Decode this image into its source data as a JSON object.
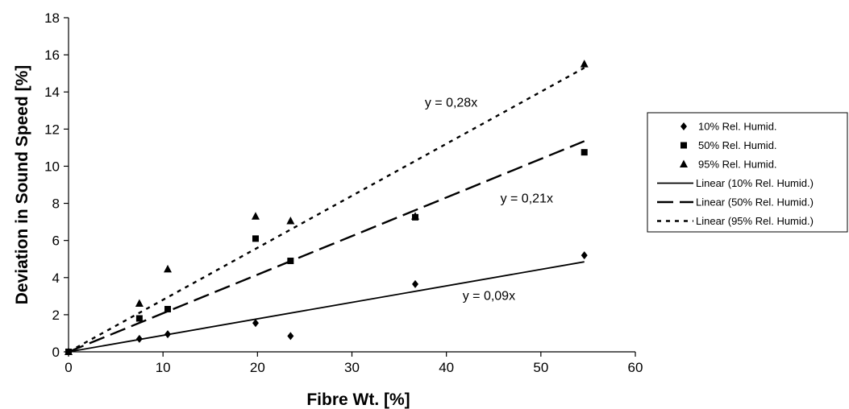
{
  "chart_data": {
    "type": "scatter",
    "title": "",
    "xlabel": "Fibre Wt. [%]",
    "ylabel": "Deviation in Sound Speed [%]",
    "xlim": [
      0,
      60
    ],
    "ylim": [
      0,
      18
    ],
    "x_ticks": [
      0,
      10,
      20,
      30,
      40,
      50,
      60
    ],
    "y_ticks": [
      0,
      2,
      4,
      6,
      8,
      10,
      12,
      14,
      16,
      18
    ],
    "grid": false,
    "legend_position": "right",
    "series": [
      {
        "name": "10% Rel. Humid.",
        "marker": "diamond",
        "points": [
          [
            0,
            0
          ],
          [
            7.5,
            0.7
          ],
          [
            10.5,
            0.95
          ],
          [
            19.8,
            1.55
          ],
          [
            23.5,
            0.85
          ],
          [
            36.7,
            3.65
          ],
          [
            54.6,
            5.2
          ]
        ]
      },
      {
        "name": "50% Rel. Humid.",
        "marker": "square",
        "points": [
          [
            0,
            0
          ],
          [
            7.5,
            1.8
          ],
          [
            10.5,
            2.3
          ],
          [
            19.8,
            6.1
          ],
          [
            23.5,
            4.9
          ],
          [
            36.7,
            7.25
          ],
          [
            54.6,
            10.75
          ]
        ]
      },
      {
        "name": "95% Rel. Humid.",
        "marker": "triangle",
        "points": [
          [
            0,
            0
          ],
          [
            7.5,
            2.6
          ],
          [
            10.5,
            4.45
          ],
          [
            19.8,
            7.3
          ],
          [
            23.5,
            7.05
          ],
          [
            36.7,
            7.3
          ],
          [
            54.6,
            15.5
          ]
        ]
      }
    ],
    "trendlines": [
      {
        "name": "Linear (10% Rel. Humid.)",
        "style": "solid",
        "from": [
          0,
          0
        ],
        "to": [
          54.6,
          4.85
        ],
        "equation": "y = 0,09x",
        "label_at": [
          44.5,
          2.8
        ]
      },
      {
        "name": "Linear (50% Rel. Humid.)",
        "style": "long-dash",
        "from": [
          0,
          0
        ],
        "to": [
          54.6,
          11.35
        ],
        "equation": "y = 0,21x",
        "label_at": [
          48.5,
          8.05
        ]
      },
      {
        "name": "Linear (95% Rel. Humid.)",
        "style": "short-dash",
        "from": [
          0,
          0
        ],
        "to": [
          54.6,
          15.3
        ],
        "equation": "y = 0,28x",
        "label_at": [
          40.5,
          13.2
        ]
      }
    ],
    "legend_entries": [
      "10% Rel. Humid.",
      "50% Rel. Humid.",
      "95% Rel. Humid.",
      "Linear (10% Rel. Humid.)",
      "Linear (50% Rel. Humid.)",
      "Linear (95% Rel. Humid.)"
    ]
  }
}
